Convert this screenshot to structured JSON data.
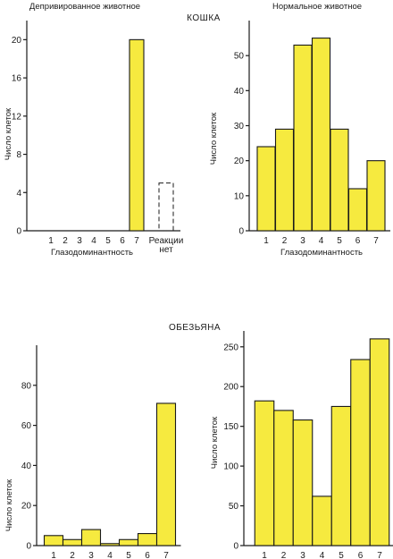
{
  "labels": {
    "cat_section": "КОШКА",
    "monkey_section": "ОБЕЗЬЯНА"
  },
  "style": {
    "bar_color": "#f6ea3f",
    "ink": "#1a1a1a"
  },
  "chart_data": [
    {
      "type": "bar",
      "title": "Депривированное животное",
      "categories": [
        "1",
        "2",
        "3",
        "4",
        "5",
        "6",
        "7"
      ],
      "values": [
        0,
        0,
        0,
        0,
        0,
        0,
        20
      ],
      "extra_category": {
        "label_lines": [
          "Реакции",
          "нет"
        ],
        "value": 5,
        "style": "dashed"
      },
      "xlabel": "Глазодоминантность",
      "ylabel": "Число клеток",
      "ylim": [
        0,
        22
      ],
      "yticks": [
        0,
        4,
        8,
        12,
        16,
        20
      ]
    },
    {
      "type": "bar",
      "title": "Нормальное животное",
      "categories": [
        "1",
        "2",
        "3",
        "4",
        "5",
        "6",
        "7"
      ],
      "values": [
        24,
        29,
        53,
        55,
        29,
        12,
        20
      ],
      "xlabel": "Глазодоминантность",
      "ylabel": "Число клеток",
      "ylim": [
        0,
        60
      ],
      "yticks": [
        0,
        10,
        20,
        30,
        40,
        50
      ]
    },
    {
      "type": "bar",
      "title": "",
      "categories": [
        "1",
        "2",
        "3",
        "4",
        "5",
        "6",
        "7"
      ],
      "values": [
        5,
        3,
        8,
        1,
        3,
        6,
        71
      ],
      "xlabel": "",
      "ylabel": "Число клеток",
      "ylim": [
        0,
        100
      ],
      "yticks": [
        0,
        20,
        40,
        60,
        80
      ]
    },
    {
      "type": "bar",
      "title": "",
      "categories": [
        "1",
        "2",
        "3",
        "4",
        "5",
        "6",
        "7"
      ],
      "values": [
        182,
        170,
        158,
        62,
        175,
        234,
        260
      ],
      "xlabel": "",
      "ylabel": "Число клеток",
      "ylim": [
        0,
        270
      ],
      "yticks": [
        0,
        50,
        100,
        150,
        200,
        250
      ]
    }
  ]
}
